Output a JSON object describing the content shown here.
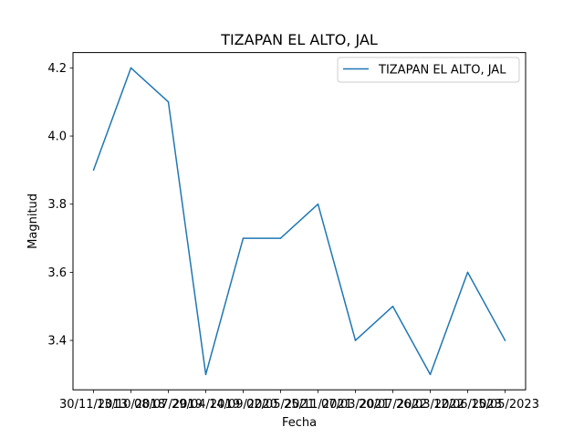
{
  "chart_data": {
    "type": "line",
    "title": "TIZAPAN EL ALTO, JAL",
    "xlabel": "Fecha",
    "ylabel": "Magnitud",
    "x": [
      "30/11/2013",
      "13/10/2018",
      "08/07/2019",
      "29/04/2019",
      "14/09/2020",
      "02/05/2021",
      "25/11/2021",
      "07/03/2021",
      "20/07/2022",
      "26/03/2022",
      "12/06/2023",
      "15/05/2023"
    ],
    "series": [
      {
        "name": "TIZAPAN EL ALTO, JAL",
        "color": "#1f77b4",
        "values": [
          3.9,
          4.2,
          4.1,
          3.3,
          3.7,
          3.7,
          3.8,
          3.4,
          3.5,
          3.3,
          3.6,
          3.4
        ]
      }
    ],
    "x_tick_labels": [
      "30/11/2013",
      "13/10/2018",
      "08/07/2019",
      "29/04/2019",
      "14/09/2020",
      "02/05/2021",
      "25/11/2021",
      "07/03/2021",
      "20/07/2022",
      "26/03/2022",
      "12/06/2023",
      "15/05/2023"
    ],
    "yticks": [
      3.4,
      3.6,
      3.8,
      4.0,
      4.2
    ],
    "ytick_labels": [
      "3.4",
      "3.6",
      "3.8",
      "4.0",
      "4.2"
    ],
    "ylim": [
      3.255,
      4.245
    ],
    "grid": false,
    "legend_position": "upper right"
  }
}
